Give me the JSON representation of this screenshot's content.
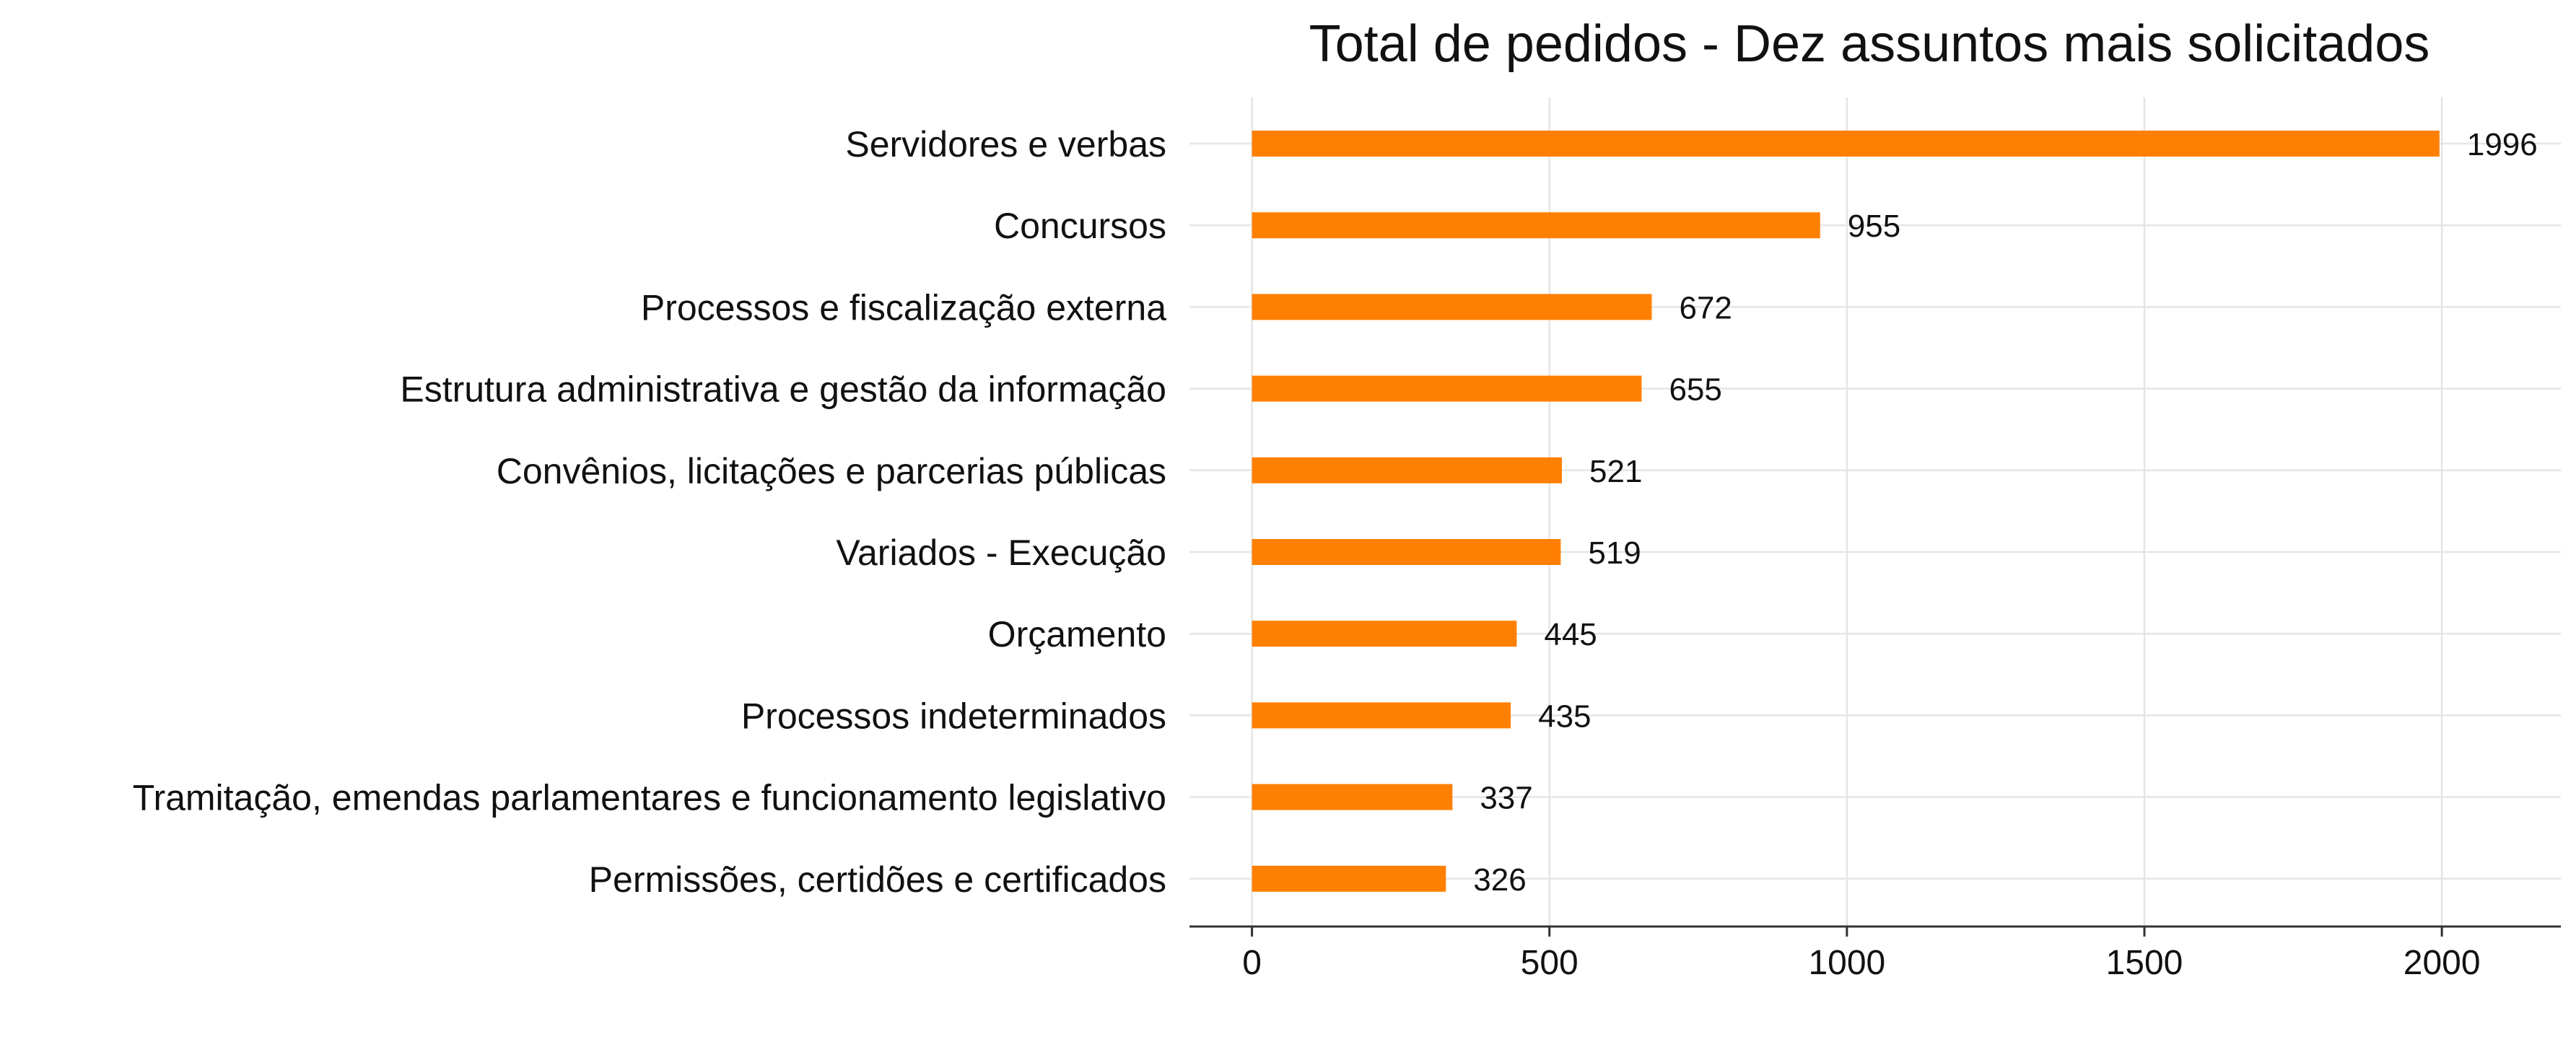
{
  "chart_data": {
    "type": "bar",
    "orientation": "horizontal",
    "title": "Total de pedidos - Dez assuntos mais solicitados",
    "xlabel": "",
    "ylabel": "",
    "categories": [
      "Servidores e verbas",
      "Concursos",
      "Processos e fiscalização externa",
      "Estrutura administrativa e gestão da informação",
      "Convênios, licitações e parcerias públicas",
      "Variados - Execução",
      "Orçamento",
      "Processos indeterminados",
      "Tramitação, emendas parlamentares e funcionamento legislativo",
      "Permissões, certidões e certificados"
    ],
    "values": [
      1996,
      955,
      672,
      655,
      521,
      519,
      445,
      435,
      337,
      326
    ],
    "value_labels": [
      "1996",
      "955",
      "672",
      "655",
      "521",
      "519",
      "445",
      "435",
      "337",
      "326"
    ],
    "x_ticks": [
      0,
      500,
      1000,
      1500,
      2000
    ],
    "x_tick_labels": [
      "0",
      "500",
      "1000",
      "1500",
      "2000"
    ],
    "xlim": [
      -105,
      2200
    ],
    "grid": true,
    "bar_color": "#FF8000",
    "grid_color": "#E5E5E5",
    "axis_color": "#333333",
    "text_color": "#111111"
  }
}
